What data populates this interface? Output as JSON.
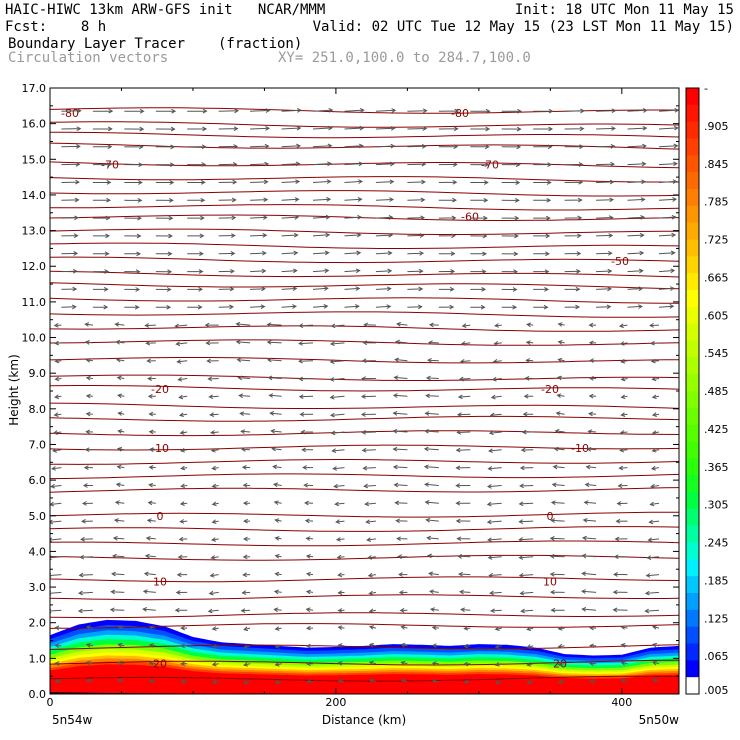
{
  "header": {
    "line1_left": "HAIC-HIWC 13km ARW-GFS init   NCAR/MMM",
    "line1_right": "Init: 18 UTC Mon 11 May 15",
    "line2_left": "Fcst:    8 h",
    "line2_right": "Valid: 02 UTC Tue 12 May 15 (23 LST Mon 11 May 15)",
    "field_name": "Boundary Layer Tracer",
    "field_units": "(fraction)",
    "overlay_name": "Circulation vectors",
    "xsec_endpoints": "XY= 251.0,100.0 to 284.7,100.0"
  },
  "chart_data": {
    "type": "heatmap",
    "xlabel": "Distance (km)",
    "ylabel": "Height (km)",
    "xlim": [
      0,
      440
    ],
    "ylim": [
      0,
      17
    ],
    "x_ticks": [
      "0",
      "200",
      "400"
    ],
    "y_ticks": [
      "0.0",
      "1.0",
      "2.0",
      "3.0",
      "4.0",
      "5.0",
      "6.0",
      "7.0",
      "8.0",
      "9.0",
      "10.0",
      "11.0",
      "12.0",
      "13.0",
      "14.0",
      "15.0",
      "16.0",
      "17.0"
    ],
    "x_endpoint_left": "5n54w",
    "x_endpoint_right": "5n50w",
    "tracer_top_km": [
      [
        0,
        1.65
      ],
      [
        20,
        1.95
      ],
      [
        40,
        2.08
      ],
      [
        60,
        2.05
      ],
      [
        80,
        1.9
      ],
      [
        100,
        1.6
      ],
      [
        120,
        1.45
      ],
      [
        140,
        1.4
      ],
      [
        160,
        1.35
      ],
      [
        180,
        1.3
      ],
      [
        200,
        1.32
      ],
      [
        220,
        1.35
      ],
      [
        240,
        1.4
      ],
      [
        260,
        1.38
      ],
      [
        280,
        1.35
      ],
      [
        300,
        1.4
      ],
      [
        320,
        1.38
      ],
      [
        340,
        1.3
      ],
      [
        360,
        1.12
      ],
      [
        380,
        1.08
      ],
      [
        400,
        1.1
      ],
      [
        420,
        1.3
      ],
      [
        440,
        1.35
      ]
    ],
    "colorbar": {
      "labels": [
        "-",
        ".905",
        ".845",
        ".785",
        ".725",
        ".665",
        ".605",
        ".545",
        ".485",
        ".425",
        ".365",
        ".305",
        ".245",
        ".185",
        ".125",
        ".065",
        ".005"
      ],
      "colors": [
        "#ff0000",
        "#ff1500",
        "#ff2a00",
        "#ff4000",
        "#ff5500",
        "#ff6a00",
        "#ff7f00",
        "#ff9500",
        "#ffaa00",
        "#ffbf00",
        "#ffd400",
        "#ffea00",
        "#ffff00",
        "#eaff00",
        "#d4ff00",
        "#bfff00",
        "#aaff00",
        "#95ff00",
        "#7fff00",
        "#6aff00",
        "#55ff00",
        "#40ff00",
        "#2aff0c",
        "#15ff20",
        "#00ff40",
        "#00ff70",
        "#00ffa0",
        "#00ffd0",
        "#00f0ff",
        "#00c8ff",
        "#00a0ff",
        "#0078ff",
        "#0050ff",
        "#0028ff",
        "#0000ff",
        "#ffffff"
      ]
    },
    "isotherms_c": [
      {
        "label": "-80",
        "y": 16.3,
        "label_x": [
          20,
          410
        ]
      },
      {
        "label": "-70",
        "y": 14.85,
        "label_x": [
          60,
          440
        ]
      },
      {
        "label": "-60",
        "y": 13.4,
        "label_x": [
          420
        ]
      },
      {
        "label": "-50",
        "y": 12.15,
        "label_x": [
          570
        ]
      },
      {
        "label": "-20",
        "y": 8.55,
        "label_x": [
          110,
          500
        ]
      },
      {
        "label": "-10",
        "y": 6.9,
        "label_x": [
          110,
          530
        ]
      },
      {
        "label": "0",
        "y": 5.0,
        "label_x": [
          110,
          500
        ]
      },
      {
        "label": "10",
        "y": 3.15,
        "label_x": [
          110,
          500
        ]
      },
      {
        "label": "20",
        "y": 0.85,
        "label_x": [
          110,
          510
        ]
      }
    ],
    "isotherm_levels_km": [
      16.4,
      16.0,
      15.7,
      15.4,
      14.9,
      14.5,
      14.1,
      13.7,
      13.4,
      13.0,
      12.6,
      12.2,
      11.8,
      11.5,
      11.1,
      10.7,
      10.3,
      9.9,
      9.4,
      8.9,
      8.6,
      8.1,
      7.7,
      7.3,
      6.9,
      6.5,
      6.1,
      5.7,
      5.0,
      4.6,
      4.2,
      3.8,
      3.2,
      2.7,
      2.2,
      1.9,
      1.3,
      0.85,
      0.4
    ],
    "vectors": {
      "upper_direction": "east",
      "lower_direction": "west",
      "reversal_height_km": 10.5
    }
  }
}
